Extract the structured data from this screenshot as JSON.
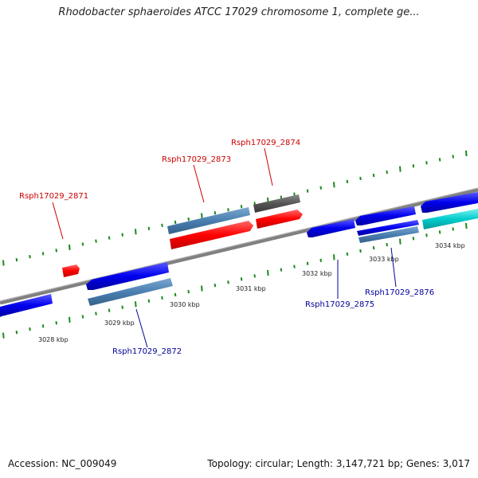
{
  "title": "Rhodobacter sphaeroides ATCC 17029 chromosome 1, complete ge...",
  "footer": {
    "accession": "Accession: NC_009049",
    "summary": "Topology: circular; Length: 3,147,721 bp; Genes: 3,017"
  },
  "ruler": {
    "ticks": [
      "3028 kbp",
      "3029 kbp",
      "3030 kbp",
      "3031 kbp",
      "3032 kbp",
      "3033 kbp",
      "3034 kbp"
    ]
  },
  "genes": [
    {
      "id": "Rsph17029_2871",
      "strand": "forward"
    },
    {
      "id": "Rsph17029_2872",
      "strand": "reverse"
    },
    {
      "id": "Rsph17029_2873",
      "strand": "forward"
    },
    {
      "id": "Rsph17029_2874",
      "strand": "forward"
    },
    {
      "id": "Rsph17029_2875",
      "strand": "reverse"
    },
    {
      "id": "Rsph17029_2876",
      "strand": "reverse"
    }
  ],
  "colors": {
    "forward_label": "#cc0000",
    "reverse_label": "#000099",
    "forward_cds": "#ff0000",
    "reverse_cds": "#0000ee",
    "gene_feature": "#4a7fb0",
    "other_feature": "#555555",
    "rna_feature": "#00cccc",
    "tick": "#1a8a1a",
    "backbone": "#808080"
  }
}
